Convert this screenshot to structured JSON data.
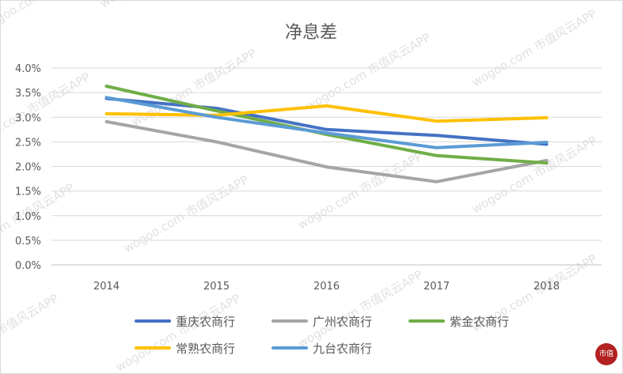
{
  "chart_data": {
    "type": "line",
    "title": "净息差",
    "categories": [
      "2014",
      "2015",
      "2016",
      "2017",
      "2018"
    ],
    "y_ticks": [
      "0.0%",
      "0.5%",
      "1.0%",
      "1.5%",
      "2.0%",
      "2.5%",
      "3.0%",
      "3.5%",
      "4.0%"
    ],
    "ylim": [
      0,
      4.0
    ],
    "y_unit": "%",
    "grid": true,
    "legend_position": "bottom",
    "series": [
      {
        "name": "重庆农商行",
        "color": "#4472c4",
        "values": [
          3.38,
          3.18,
          2.75,
          2.63,
          2.45
        ]
      },
      {
        "name": "广州农商行",
        "color": "#a5a5a5",
        "values": [
          2.91,
          2.5,
          1.99,
          1.69,
          2.12
        ]
      },
      {
        "name": "紫金农商行",
        "color": "#70ad47",
        "values": [
          3.63,
          3.13,
          2.65,
          2.22,
          2.07
        ]
      },
      {
        "name": "常熟农商行",
        "color": "#ffc000",
        "values": [
          3.07,
          3.04,
          3.23,
          2.92,
          2.99
        ]
      },
      {
        "name": "九台农商行",
        "color": "#5b9bd5",
        "values": [
          3.4,
          3.0,
          2.68,
          2.38,
          2.49
        ]
      }
    ]
  },
  "watermark": {
    "text": "wogoo.com  市值风云APP",
    "logo_text": "市值"
  }
}
